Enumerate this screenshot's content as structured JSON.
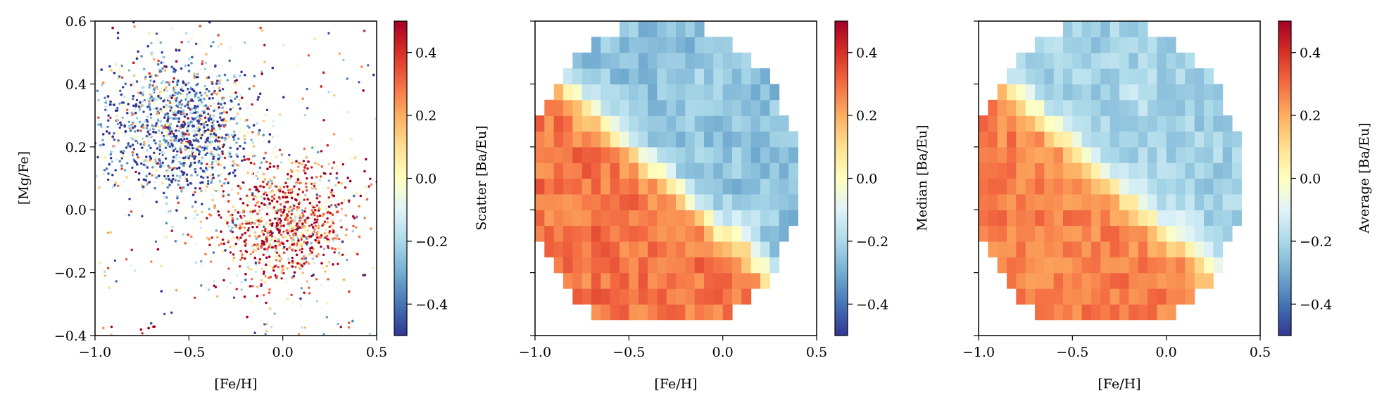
{
  "figure": {
    "panels": [
      {
        "id": "scatter",
        "xlabel": "[Fe/H]",
        "ylabel": "[Mg/Fe]",
        "colorbar_label": "Scatter [Ba/Eu]"
      },
      {
        "id": "median",
        "xlabel": "[Fe/H]",
        "ylabel": "",
        "colorbar_label": "Median [Ba/Eu]"
      },
      {
        "id": "average",
        "xlabel": "[Fe/H]",
        "ylabel": "",
        "colorbar_label": "Average [Ba/Eu]"
      }
    ]
  },
  "chart_data": [
    {
      "type": "scatter",
      "xlabel": "[Fe/H]",
      "ylabel": "[Mg/Fe]",
      "xlim": [
        -1.0,
        0.5
      ],
      "ylim": [
        -0.4,
        0.6
      ],
      "xticks": [
        "−1.0",
        "−0.5",
        "0.0",
        "0.5"
      ],
      "yticks": [
        "−0.4",
        "−0.2",
        "0.0",
        "0.2",
        "0.4",
        "0.6"
      ],
      "colorbar": {
        "label": "Scatter [Ba/Eu]",
        "range": [
          -0.5,
          0.5
        ],
        "ticks": [
          "−0.4",
          "−0.2",
          "0.0",
          "0.2",
          "0.4"
        ],
        "colormap": "RdYlBu_r"
      },
      "points_description": "thousands of stars; metal-poor high-[Mg/Fe] sequence centered near [Fe/H]=-0.55, [Mg/Fe]=0.28 with low [Ba/Eu]; metal-rich low-[Mg/Fe] sequence centered near [Fe/H]=0.0, [Mg/Fe]=-0.05 with high [Ba/Eu]",
      "series": [
        {
          "cluster": "high-alpha",
          "x_center": -0.55,
          "y_center": 0.28,
          "color_center": -0.3
        },
        {
          "cluster": "low-alpha",
          "x_center": 0.0,
          "y_center": -0.05,
          "color_center": 0.3
        }
      ],
      "grid": false
    },
    {
      "type": "heatmap",
      "xlabel": "[Fe/H]",
      "xlim": [
        -1.0,
        0.5
      ],
      "ylim": [
        -0.4,
        0.6
      ],
      "xticks": [
        "−1.0",
        "−0.5",
        "0.0",
        "0.5"
      ],
      "colorbar": {
        "label": "Median [Ba/Eu]",
        "range": [
          -0.5,
          0.5
        ],
        "ticks": [
          "−0.4",
          "−0.2",
          "0.0",
          "0.2",
          "0.4"
        ],
        "colormap": "RdYlBu_r"
      },
      "bin_size": 0.05,
      "statistic": "median",
      "grid": false
    },
    {
      "type": "heatmap",
      "xlabel": "[Fe/H]",
      "xlim": [
        -1.0,
        0.5
      ],
      "ylim": [
        -0.4,
        0.6
      ],
      "xticks": [
        "−1.0",
        "−0.5",
        "0.0",
        "0.5"
      ],
      "colorbar": {
        "label": "Average [Ba/Eu]",
        "range": [
          -0.5,
          0.5
        ],
        "ticks": [
          "−0.4",
          "−0.2",
          "0.0",
          "0.2",
          "0.4"
        ],
        "colormap": "RdYlBu_r"
      },
      "bin_size": 0.05,
      "statistic": "mean",
      "grid": false
    }
  ]
}
